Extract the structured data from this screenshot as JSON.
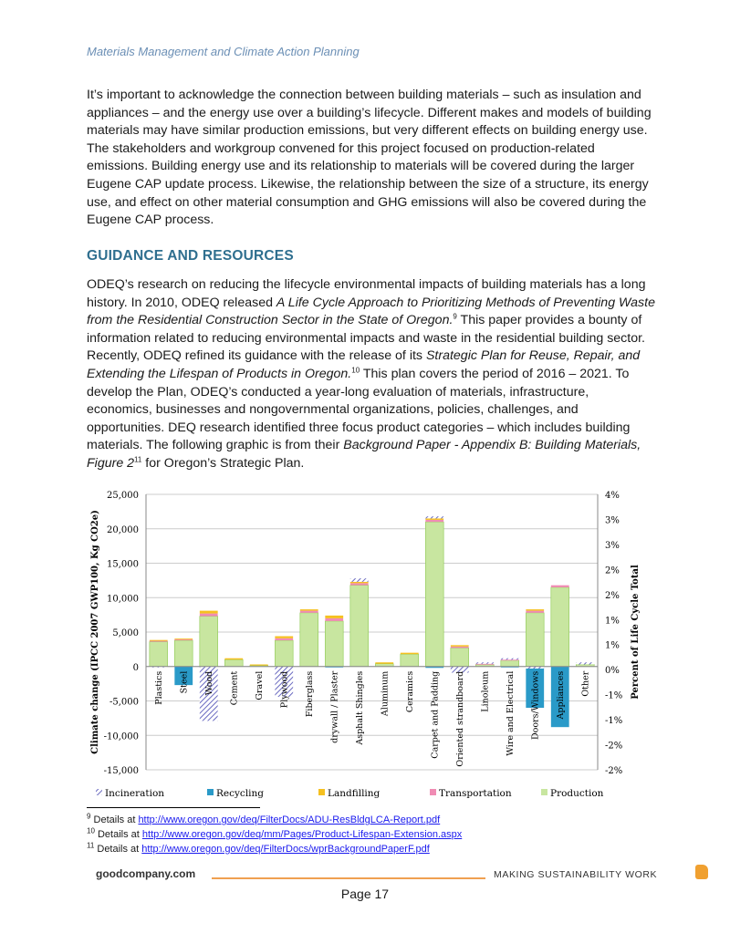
{
  "header": "Materials Management and Climate Action Planning",
  "para1": "It’s important to acknowledge the connection between building materials – such as insulation and appliances – and the energy use over a building’s lifecycle. Different makes and models of building materials may have similar production emissions, but very different effects on building energy use. The stakeholders and workgroup convened for this project focused on production-related emissions. Building energy use and its relationship to materials will be covered during the larger Eugene CAP update process. Likewise, the relationship between the size of a structure, its energy use, and effect on other material consumption and GHG emissions will also be covered during the Eugene CAP process.",
  "heading": "GUIDANCE AND RESOURCES",
  "para2": {
    "t1": "ODEQ’s research on reducing the lifecycle environmental impacts of building materials has a long history. In 2010, ODEQ released ",
    "i1": "A Life Cycle Approach to Prioritizing Methods of Preventing Waste from the Residential Construction Sector in the State of Oregon.",
    "s1": "9",
    "t2": " This paper provides a bounty of information related to reducing environmental impacts and waste in the residential building sector. Recently, ODEQ refined its guidance with the release of its ",
    "i2": "Strategic Plan for Reuse, Repair, and Extending the Lifespan of Products in Oregon.",
    "s2": "10",
    "t3": " This plan covers the period of 2016 – 2021. To develop the Plan, ODEQ’s conducted a year-long evaluation of materials, infrastructure, economics, businesses and nongovernmental organizations, policies, challenges, and opportunities. DEQ research identified three focus product categories – which includes building materials.   The following graphic is from their ",
    "i3": "Background Paper - Appendix B: Building Materials, Figure 2",
    "s3": "11",
    "t4": " for Oregon’s Strategic Plan."
  },
  "chart_data": {
    "type": "bar",
    "stacked": true,
    "ylabel": "Climate change (IPCC 2007 GWP100, Kg CO2e)",
    "y2label": "Percent of Life Cycle Total",
    "ylim": [
      -15000,
      25000
    ],
    "yticks": [
      "25,000",
      "20,000",
      "15,000",
      "10,000",
      "5,000",
      "0",
      "-5,000",
      "-10,000",
      "-15,000"
    ],
    "y2ticks": [
      "4%",
      "3%",
      "3%",
      "2%",
      "2%",
      "1%",
      "1%",
      "0%",
      "-1%",
      "-1%",
      "-2%",
      "-2%"
    ],
    "categories": [
      "Plastics",
      "Steel",
      "Wood",
      "Cement",
      "Gravel",
      "Plywood",
      "Fiberglass",
      "drywall / Plaster",
      "Asphalt Shingles",
      "Aluminum",
      "Ceramics",
      "Carpet and Padding",
      "Oriented strandboard",
      "Linoleum",
      "Wire and Electrical",
      "Doors/Windows",
      "Appliances",
      "Other"
    ],
    "series": [
      {
        "name": "Production",
        "color": "#c8e6a0",
        "values": [
          3600,
          3800,
          7300,
          1000,
          150,
          3800,
          7800,
          6600,
          11800,
          400,
          1800,
          21000,
          2700,
          300,
          900,
          7800,
          11500,
          300
        ]
      },
      {
        "name": "Transportation",
        "color": "#f08cb4",
        "values": [
          150,
          150,
          400,
          0,
          0,
          300,
          300,
          400,
          300,
          0,
          0,
          300,
          200,
          100,
          100,
          300,
          300,
          0
        ]
      },
      {
        "name": "Landfilling",
        "color": "#f5c020",
        "values": [
          100,
          100,
          400,
          200,
          150,
          300,
          200,
          400,
          200,
          200,
          200,
          200,
          200,
          0,
          0,
          200,
          0,
          0
        ]
      },
      {
        "name": "Incineration",
        "color": "#8888d0",
        "values": [
          -100,
          0,
          -7900,
          0,
          0,
          -4400,
          0,
          0,
          500,
          0,
          0,
          300,
          -900,
          200,
          200,
          -300,
          0,
          300
        ]
      },
      {
        "name": "Recycling",
        "color": "#2a9ac8",
        "values": [
          0,
          -2700,
          0,
          0,
          0,
          0,
          0,
          -100,
          0,
          0,
          0,
          -200,
          0,
          0,
          -100,
          -5700,
          -8800,
          0
        ]
      }
    ],
    "legend_position": "bottom",
    "legend": [
      "Incineration",
      "Recycling",
      "Landfilling",
      "Transportation",
      "Production"
    ]
  },
  "footnotes": [
    {
      "n": "9",
      "text": "Details at ",
      "link": "http://www.oregon.gov/deq/FilterDocs/ADU-ResBldgLCA-Report.pdf"
    },
    {
      "n": "10",
      "text": "Details at ",
      "link": "http://www.oregon.gov/deq/mm/Pages/Product-Lifespan-Extension.aspx"
    },
    {
      "n": "11",
      "text": "Details at ",
      "link": "http://www.oregon.gov/deq/FilterDocs/wprBackgroundPaperF.pdf"
    }
  ],
  "footer": {
    "site": "goodcompany.com",
    "tagline": "MAKING SUSTAINABILITY WORK",
    "page": "Page 17"
  }
}
